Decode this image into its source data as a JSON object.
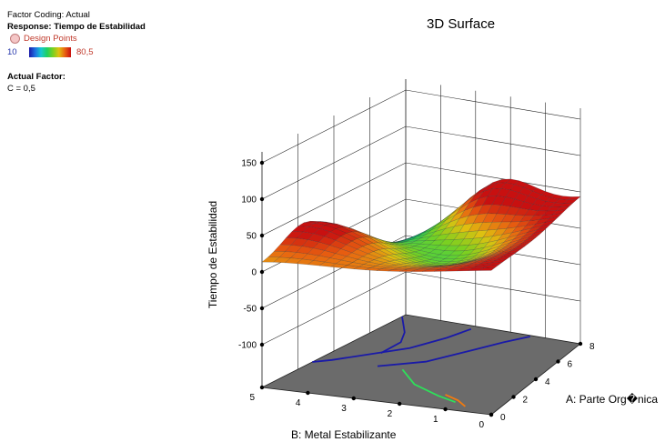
{
  "legend": {
    "factor_coding": "Factor Coding: Actual",
    "response": "Response: Tiempo de Estabilidad",
    "design_points": "Design Points",
    "scale_min": "10",
    "scale_max": "80,5",
    "actual_factor_title": "Actual Factor:",
    "actual_factor_value": "C = 0,5"
  },
  "chart_data": {
    "type": "surface",
    "title": "3D Surface",
    "zlabel": "Tiempo de Estabilidad",
    "xlabel": "A: Parte Org�nica",
    "ylabel": "B: Metal Estabilizante",
    "zlim": [
      -100,
      150
    ],
    "z_ticks": [
      "150",
      "100",
      "50",
      "0",
      "-50",
      "-100"
    ],
    "a_ticks": [
      "0",
      "2",
      "4",
      "6",
      "8"
    ],
    "b_ticks": [
      "0",
      "1",
      "2",
      "3",
      "4",
      "5"
    ],
    "a_range": [
      0,
      8
    ],
    "b_range": [
      0,
      5
    ],
    "color_min": 10,
    "color_max": 80.5,
    "surface_corners": {
      "a0_b5": 3,
      "a0_b0": 40,
      "a8_b0": 40,
      "a8_b5": -60
    },
    "surface_peaks": [
      {
        "a": 2.5,
        "b": 5,
        "z": 50
      },
      {
        "a": 8,
        "b": 2.3,
        "z": 80
      }
    ],
    "contours": [
      {
        "color": "#1a1aa8",
        "level": "low"
      },
      {
        "color": "#1a1aa8",
        "level": "low"
      },
      {
        "color": "#1a1aa8",
        "level": "low"
      },
      {
        "color": "#2ee05a",
        "level": "mid"
      },
      {
        "color": "#f07a10",
        "level": "high"
      }
    ],
    "floor_color": "#6b6b6b",
    "grid": true
  }
}
